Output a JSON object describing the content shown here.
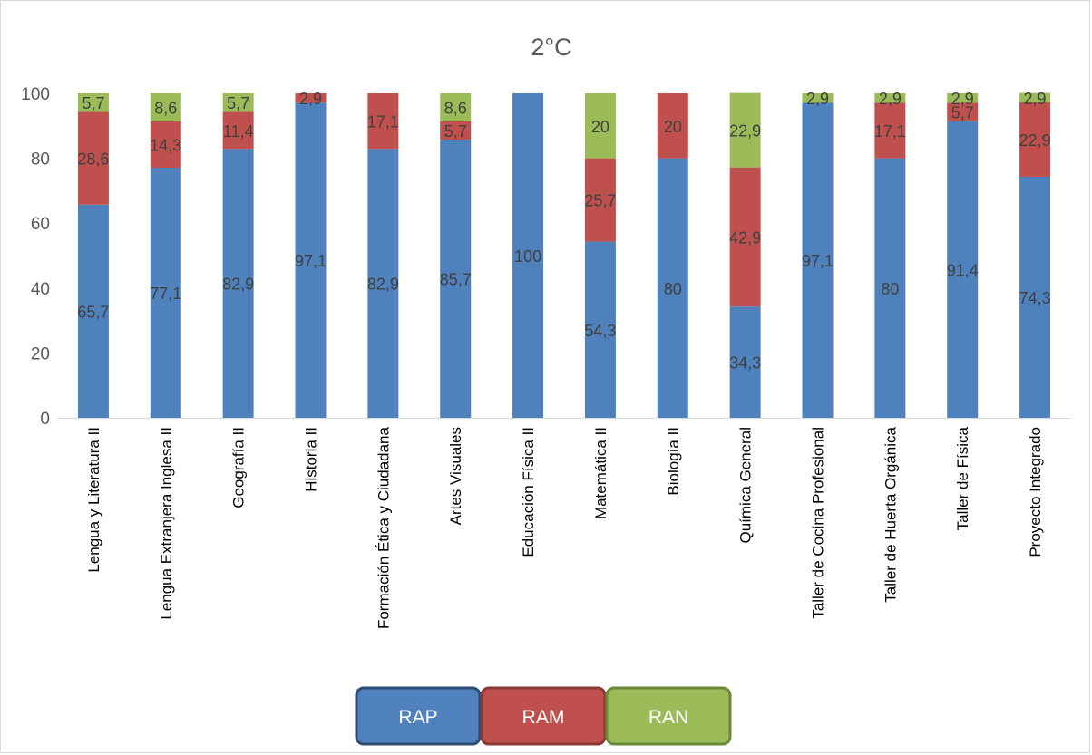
{
  "chart_data": {
    "type": "bar",
    "stacked": true,
    "title": "2°C",
    "xlabel": "",
    "ylabel": "",
    "ylim": [
      0,
      100
    ],
    "yticks": [
      0,
      20,
      40,
      60,
      80,
      100
    ],
    "grid": false,
    "legend_position": "bottom",
    "categories": [
      "Lengua y Literatura II",
      "Lengua Extranjera Inglesa II",
      "Geografía II",
      "Historia II",
      "Formación Ética y Ciudadana",
      "Artes Visuales",
      "Educación Física II",
      "Matemática II",
      "Biología II",
      "Química General",
      "Taller de Cocina Profesional",
      "Taller de Huerta Orgánica",
      "Taller de Física",
      "Proyecto Integrado"
    ],
    "series": [
      {
        "name": "RAP",
        "color": "#4f81bd",
        "values": [
          65.7,
          77.1,
          82.9,
          97.1,
          82.9,
          85.7,
          100,
          54.3,
          80,
          34.3,
          97.1,
          80,
          91.4,
          74.3
        ],
        "labels": [
          "65,7",
          "77,1",
          "82,9",
          "97,1",
          "82,9",
          "85,7",
          "100",
          "54,3",
          "80",
          "34,3",
          "97,1",
          "80",
          "91,4",
          "74,3"
        ]
      },
      {
        "name": "RAM",
        "color": "#c0504d",
        "values": [
          28.6,
          14.3,
          11.4,
          2.9,
          17.1,
          5.7,
          0,
          25.7,
          20,
          42.9,
          0,
          17.1,
          5.7,
          22.9
        ],
        "labels": [
          "28,6",
          "14,3",
          "11,4",
          "2,9",
          "17,1",
          "5,7",
          "",
          "25,7",
          "20",
          "42,9",
          "",
          "17,1",
          "5,7",
          "22,9"
        ]
      },
      {
        "name": "RAN",
        "color": "#9bbb59",
        "values": [
          5.7,
          8.6,
          5.7,
          0,
          0,
          8.6,
          0,
          20,
          0,
          22.9,
          2.9,
          2.9,
          2.9,
          2.9
        ],
        "labels": [
          "5,7",
          "8,6",
          "5,7",
          "",
          "",
          "8,6",
          "",
          "20",
          "",
          "22,9",
          "2,9",
          "2,9",
          "2,9",
          "2,9"
        ]
      }
    ],
    "legend_borders": [
      "#2e4d74",
      "#8c3836",
      "#6a8a3a"
    ]
  }
}
